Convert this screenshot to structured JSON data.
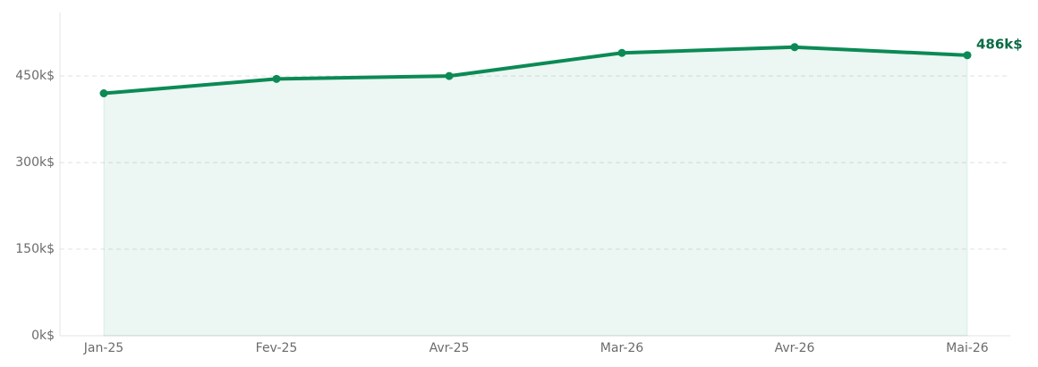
{
  "chart_data": {
    "type": "area",
    "categories": [
      "Jan-25",
      "Fev-25",
      "Avr-25",
      "Mar-26",
      "Avr-26",
      "Mai-26"
    ],
    "series": [
      {
        "color": "#0b8a55",
        "values": [
          420,
          445,
          450,
          490,
          500,
          486
        ],
        "value_labels": [
          null,
          null,
          null,
          null,
          null,
          "486k$"
        ]
      }
    ],
    "ylim": [
      0,
      560
    ],
    "yticks": [
      {
        "value": 0,
        "label": "0k$"
      },
      {
        "value": 150,
        "label": "150k$"
      },
      {
        "value": 300,
        "label": "300k$"
      },
      {
        "value": 450,
        "label": "450k$"
      }
    ],
    "grid": true
  }
}
